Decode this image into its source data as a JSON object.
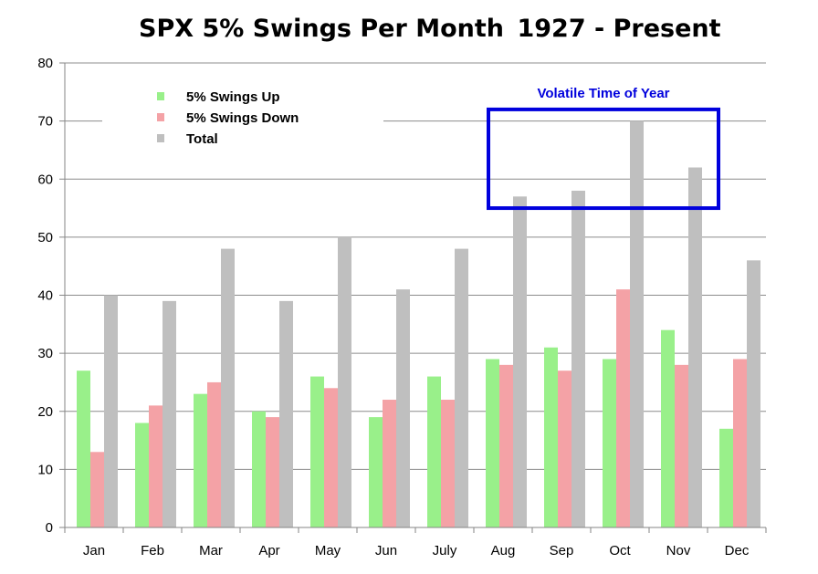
{
  "chart_data": {
    "type": "bar",
    "title": "SPX 5% Swings Per Month",
    "subtitle": "1927 - Present",
    "categories": [
      "Jan",
      "Feb",
      "Mar",
      "Apr",
      "May",
      "Jun",
      "July",
      "Aug",
      "Sep",
      "Oct",
      "Nov",
      "Dec"
    ],
    "series": [
      {
        "name": "5% Swings Up",
        "color": "#99f08a",
        "values": [
          27,
          18,
          23,
          20,
          26,
          19,
          26,
          29,
          31,
          29,
          34,
          17
        ]
      },
      {
        "name": "5% Swings Down",
        "color": "#f4a2a6",
        "values": [
          13,
          21,
          25,
          19,
          24,
          22,
          22,
          28,
          27,
          41,
          28,
          29
        ]
      },
      {
        "name": "Total",
        "color": "#bfbfbf",
        "values": [
          40,
          39,
          48,
          39,
          50,
          41,
          48,
          57,
          58,
          70,
          62,
          46
        ]
      }
    ],
    "ylim": [
      0,
      80
    ],
    "yticks": [
      0,
      10,
      20,
      30,
      40,
      50,
      60,
      70,
      80
    ],
    "grid": true,
    "legend_position": "top-left",
    "annotation": {
      "text": "Volatile Time of Year",
      "color": "#0000dd",
      "from_category": "Aug",
      "to_category": "Nov",
      "y_range": [
        55,
        72
      ]
    }
  }
}
